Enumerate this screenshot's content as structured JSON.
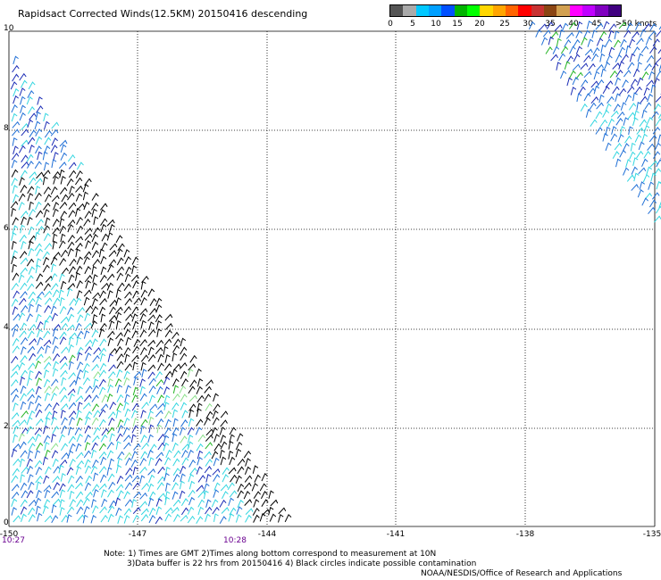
{
  "title": "Rapidsact Corrected Winds(12.5KM) 20150416 descending",
  "legend": {
    "unit": ">50 knots",
    "colors": [
      "#555555",
      "#aaaaaa",
      "#00c8ff",
      "#00a0ff",
      "#0050ff",
      "#00b400",
      "#00ff00",
      "#ffd700",
      "#ffa500",
      "#ff6400",
      "#ff0000",
      "#c83232",
      "#8b4513",
      "#d2a050",
      "#ff00ff",
      "#c000ff",
      "#8000c0",
      "#400080"
    ],
    "labels": [
      "0",
      "5",
      "10",
      "15",
      "20",
      "25",
      "30",
      "35",
      "40",
      "45"
    ]
  },
  "axes": {
    "lat_labels": [
      "10",
      "8",
      "6",
      "4",
      "2",
      "0"
    ],
    "lon_labels": [
      "-150",
      "-147",
      "-144",
      "-141",
      "-138",
      "-135"
    ]
  },
  "times": [
    "10:27",
    "10:28"
  ],
  "notes": [
    "Note: 1) Times are GMT 2)Times along bottom correspond to measurement at 10N",
    "3)Data buffer is 22 hrs from 20150416 4) Black circles indicate possible contamination",
    "NOAA/NESDIS/Office of Research and Applications"
  ],
  "swath_colors": {
    "black": "#000000",
    "cyan": "#33d6e0",
    "blue": "#1f6fd6",
    "navy": "#1a2bb5",
    "green": "#22b422",
    "light_green": "#8be08b"
  }
}
